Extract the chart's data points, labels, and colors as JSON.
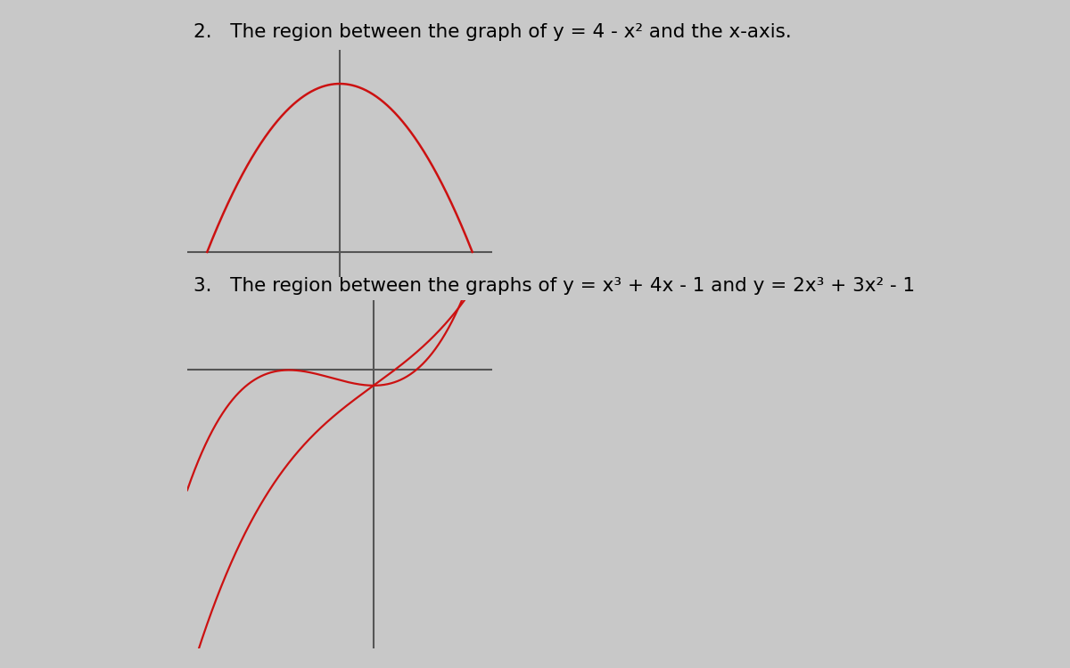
{
  "background_color": "#c8c8c8",
  "page_color": "#ffffff",
  "curve_color": "#cc1111",
  "axis_color": "#555555",
  "text_color": "#000000",
  "title2": "2.   The region between the graph of y = 4 - x² and the x-axis.",
  "title3": "3.   The region between the graphs of y = x³ + 4x - 1 and y = 2x³ + 3x² - 1",
  "font_size": 15.5,
  "plot1_xlim": [
    -2.3,
    2.3
  ],
  "plot1_ylim": [
    -0.6,
    4.8
  ],
  "plot2_xlim": [
    -2.2,
    1.4
  ],
  "plot2_ylim": [
    -18,
    4.5
  ]
}
